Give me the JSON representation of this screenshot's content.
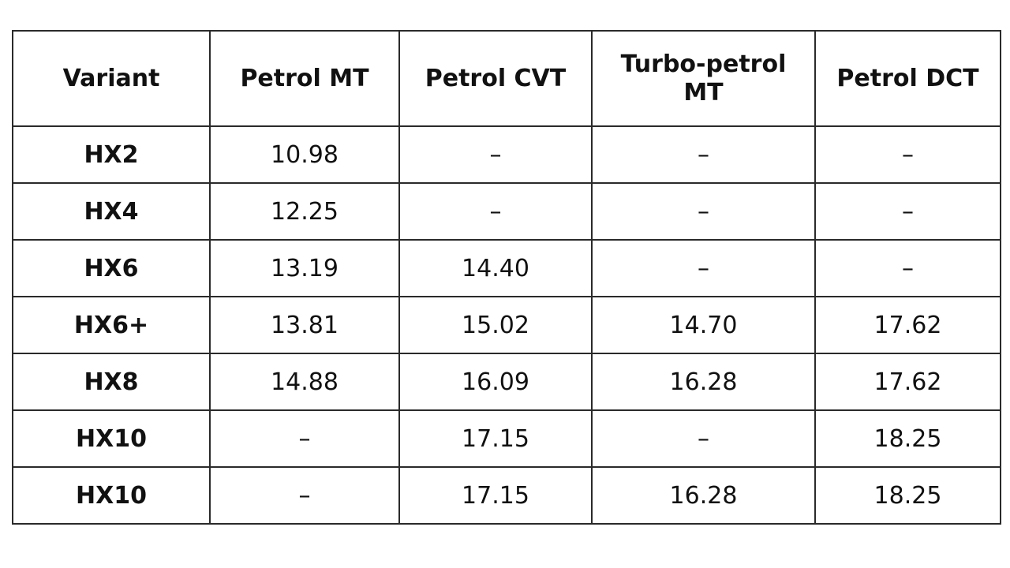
{
  "table": {
    "header": [
      "Variant",
      "Petrol MT",
      "Petrol CVT",
      "Turbo-petrol MT",
      "Petrol DCT"
    ],
    "rows": [
      [
        "HX2",
        "10.98",
        "–",
        "–",
        "–"
      ],
      [
        "HX4",
        "12.25",
        "–",
        "–",
        "–"
      ],
      [
        "HX6",
        "13.19",
        "14.40",
        "–",
        "–"
      ],
      [
        "HX6+",
        "13.81",
        "15.02",
        "14.70",
        "17.62"
      ],
      [
        "HX8",
        "14.88",
        "16.09",
        "16.28",
        "17.62"
      ],
      [
        "HX10",
        "–",
        "17.15",
        "–",
        "18.25"
      ],
      [
        "HX10",
        "–",
        "17.15",
        "16.28",
        "18.25"
      ]
    ]
  }
}
